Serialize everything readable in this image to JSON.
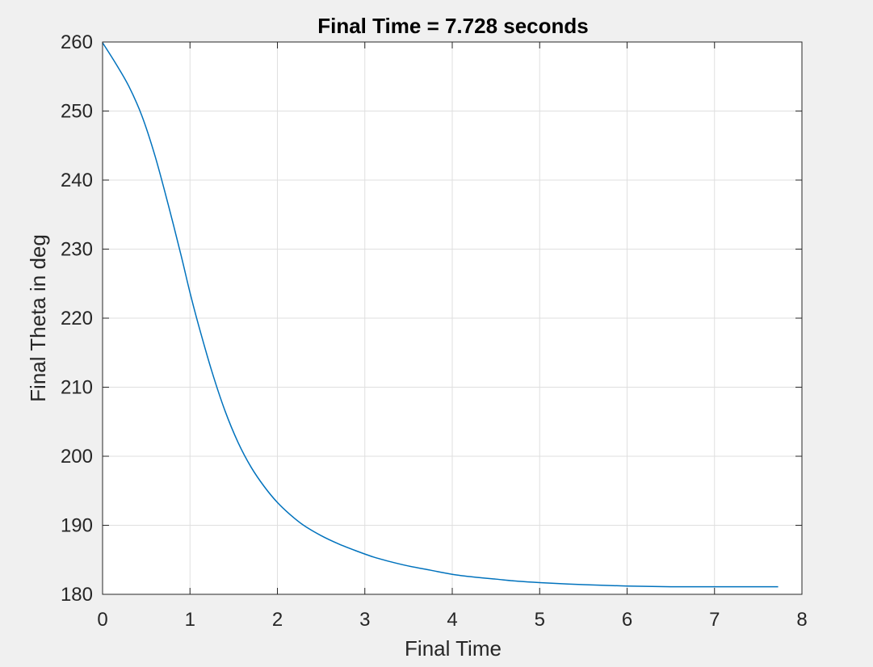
{
  "chart_data": {
    "type": "line",
    "title": "Final Time = 7.728 seconds",
    "xlabel": "Final Time",
    "ylabel": "Final Theta in deg",
    "xlim": [
      0,
      8
    ],
    "ylim": [
      180,
      260
    ],
    "xticks": [
      "0",
      "1",
      "2",
      "3",
      "4",
      "5",
      "6",
      "7",
      "8"
    ],
    "yticks": [
      "180",
      "190",
      "200",
      "210",
      "220",
      "230",
      "240",
      "250",
      "260"
    ],
    "grid": true,
    "series": [
      {
        "color": "#0072bd",
        "x": [
          0,
          0.15,
          0.3,
          0.45,
          0.6,
          0.75,
          0.9,
          1.0,
          1.1,
          1.25,
          1.4,
          1.55,
          1.7,
          1.85,
          2.0,
          2.15,
          2.3,
          2.5,
          2.7,
          2.9,
          3.1,
          3.3,
          3.5,
          3.75,
          4.0,
          4.25,
          4.5,
          4.75,
          5.0,
          5.5,
          6.0,
          6.5,
          7.0,
          7.5,
          7.728
        ],
        "y": [
          259.9,
          256.9,
          253.6,
          249.3,
          243.5,
          236.5,
          229.0,
          223.7,
          218.9,
          212.3,
          206.6,
          202.0,
          198.4,
          195.6,
          193.3,
          191.5,
          190.0,
          188.5,
          187.3,
          186.3,
          185.4,
          184.7,
          184.1,
          183.5,
          182.9,
          182.5,
          182.2,
          181.9,
          181.7,
          181.4,
          181.2,
          181.1,
          181.1,
          181.1,
          181.1
        ]
      }
    ]
  }
}
